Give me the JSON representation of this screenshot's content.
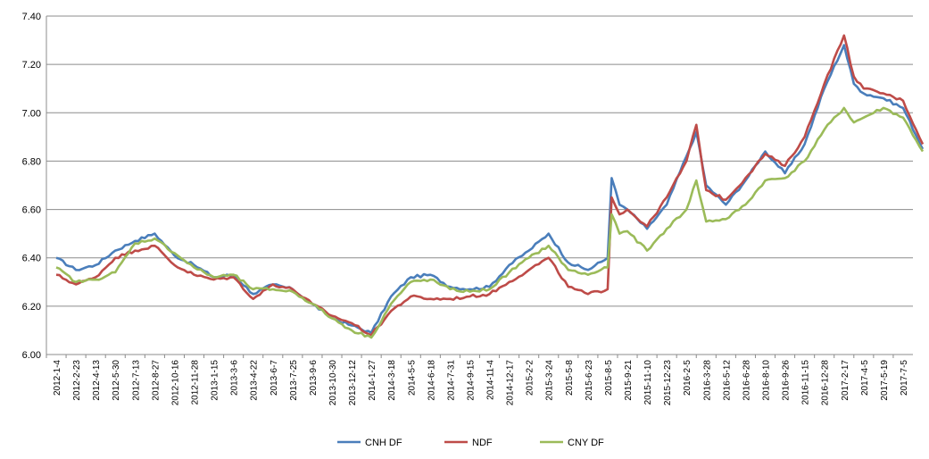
{
  "chart_data": {
    "type": "line",
    "title": "",
    "xlabel": "",
    "ylabel": "",
    "ylim": [
      6.0,
      7.4
    ],
    "yticks": [
      "6.00",
      "6.20",
      "6.40",
      "6.60",
      "6.80",
      "7.00",
      "7.20",
      "7.40"
    ],
    "grid": true,
    "legend_position": "bottom",
    "categories": [
      "2012-1-4",
      "2012-2-23",
      "2012-4-13",
      "2012-5-30",
      "2012-7-13",
      "2012-8-27",
      "2012-10-16",
      "2012-11-28",
      "2013-1-15",
      "2013-3-6",
      "2013-4-22",
      "2013-6-7",
      "2013-7-25",
      "2013-9-6",
      "2013-10-30",
      "2013-12-12",
      "2014-1-27",
      "2014-3-18",
      "2014-5-5",
      "2014-6-18",
      "2014-7-31",
      "2014-9-15",
      "2014-11-4",
      "2014-12-17",
      "2015-2-2",
      "2015-3-24",
      "2015-5-8",
      "2015-6-23",
      "2015-8-5",
      "2015-9-21",
      "2015-11-10",
      "2015-12-23",
      "2016-2-5",
      "2016-3-28",
      "2016-5-12",
      "2016-6-28",
      "2016-8-10",
      "2016-9-26",
      "2016-11-15",
      "2016-12-28",
      "2017-2-17",
      "2017-4-5",
      "2017-5-19",
      "2017-7-5"
    ],
    "series": [
      {
        "name": "CNH DF",
        "color": "#4a7ebb",
        "values": [
          [
            0,
            6.4
          ],
          [
            1,
            6.35
          ],
          [
            2,
            6.37
          ],
          [
            3,
            6.43
          ],
          [
            4,
            6.47
          ],
          [
            5,
            6.5
          ],
          [
            6,
            6.41
          ],
          [
            7,
            6.37
          ],
          [
            8,
            6.32
          ],
          [
            9,
            6.33
          ],
          [
            10,
            6.25
          ],
          [
            11,
            6.29
          ],
          [
            12,
            6.27
          ],
          [
            13,
            6.21
          ],
          [
            14,
            6.15
          ],
          [
            15,
            6.12
          ],
          [
            16,
            6.09
          ],
          [
            17,
            6.24
          ],
          [
            18,
            6.32
          ],
          [
            19,
            6.33
          ],
          [
            20,
            6.28
          ],
          [
            21,
            6.27
          ],
          [
            22,
            6.28
          ],
          [
            23,
            6.37
          ],
          [
            24,
            6.43
          ],
          [
            25,
            6.5
          ],
          [
            26,
            6.38
          ],
          [
            27,
            6.35
          ],
          [
            28,
            6.4
          ],
          [
            28.2,
            6.73
          ],
          [
            28.6,
            6.62
          ],
          [
            29,
            6.6
          ],
          [
            30,
            6.52
          ],
          [
            31,
            6.62
          ],
          [
            32,
            6.82
          ],
          [
            32.5,
            6.92
          ],
          [
            33,
            6.7
          ],
          [
            34,
            6.62
          ],
          [
            35,
            6.72
          ],
          [
            36,
            6.84
          ],
          [
            37,
            6.75
          ],
          [
            38,
            6.87
          ],
          [
            39,
            7.1
          ],
          [
            40,
            7.28
          ],
          [
            40.5,
            7.12
          ],
          [
            41,
            7.08
          ],
          [
            42,
            7.06
          ],
          [
            43,
            7.02
          ],
          [
            44,
            6.85
          ]
        ]
      },
      {
        "name": "NDF",
        "color": "#be4b48",
        "values": [
          [
            0,
            6.33
          ],
          [
            1,
            6.29
          ],
          [
            2,
            6.32
          ],
          [
            3,
            6.4
          ],
          [
            4,
            6.43
          ],
          [
            5,
            6.45
          ],
          [
            6,
            6.37
          ],
          [
            7,
            6.33
          ],
          [
            8,
            6.31
          ],
          [
            9,
            6.32
          ],
          [
            10,
            6.23
          ],
          [
            11,
            6.29
          ],
          [
            12,
            6.27
          ],
          [
            13,
            6.21
          ],
          [
            14,
            6.16
          ],
          [
            15,
            6.13
          ],
          [
            16,
            6.08
          ],
          [
            17,
            6.18
          ],
          [
            18,
            6.24
          ],
          [
            19,
            6.23
          ],
          [
            20,
            6.23
          ],
          [
            21,
            6.24
          ],
          [
            22,
            6.25
          ],
          [
            23,
            6.3
          ],
          [
            24,
            6.35
          ],
          [
            25,
            6.4
          ],
          [
            26,
            6.28
          ],
          [
            27,
            6.25
          ],
          [
            28,
            6.27
          ],
          [
            28.2,
            6.65
          ],
          [
            28.6,
            6.58
          ],
          [
            29,
            6.6
          ],
          [
            30,
            6.53
          ],
          [
            31,
            6.65
          ],
          [
            32,
            6.8
          ],
          [
            32.5,
            6.95
          ],
          [
            33,
            6.68
          ],
          [
            34,
            6.64
          ],
          [
            35,
            6.73
          ],
          [
            36,
            6.83
          ],
          [
            37,
            6.78
          ],
          [
            38,
            6.9
          ],
          [
            39,
            7.12
          ],
          [
            40,
            7.32
          ],
          [
            40.5,
            7.15
          ],
          [
            41,
            7.1
          ],
          [
            42,
            7.08
          ],
          [
            43,
            7.05
          ],
          [
            44,
            6.87
          ]
        ]
      },
      {
        "name": "CNY DF",
        "color": "#9bbb59",
        "values": [
          [
            0,
            6.36
          ],
          [
            1,
            6.3
          ],
          [
            2,
            6.31
          ],
          [
            3,
            6.34
          ],
          [
            4,
            6.46
          ],
          [
            5,
            6.48
          ],
          [
            6,
            6.42
          ],
          [
            7,
            6.36
          ],
          [
            8,
            6.32
          ],
          [
            9,
            6.33
          ],
          [
            10,
            6.27
          ],
          [
            11,
            6.27
          ],
          [
            12,
            6.26
          ],
          [
            13,
            6.21
          ],
          [
            14,
            6.15
          ],
          [
            15,
            6.1
          ],
          [
            16,
            6.07
          ],
          [
            17,
            6.21
          ],
          [
            18,
            6.3
          ],
          [
            19,
            6.31
          ],
          [
            20,
            6.27
          ],
          [
            21,
            6.26
          ],
          [
            22,
            6.27
          ],
          [
            23,
            6.34
          ],
          [
            24,
            6.4
          ],
          [
            25,
            6.45
          ],
          [
            26,
            6.35
          ],
          [
            27,
            6.33
          ],
          [
            28,
            6.36
          ],
          [
            28.2,
            6.58
          ],
          [
            28.6,
            6.5
          ],
          [
            29,
            6.51
          ],
          [
            30,
            6.43
          ],
          [
            31,
            6.52
          ],
          [
            32,
            6.6
          ],
          [
            32.5,
            6.72
          ],
          [
            33,
            6.55
          ],
          [
            34,
            6.56
          ],
          [
            35,
            6.62
          ],
          [
            36,
            6.72
          ],
          [
            37,
            6.73
          ],
          [
            38,
            6.8
          ],
          [
            39,
            6.93
          ],
          [
            40,
            7.02
          ],
          [
            40.5,
            6.96
          ],
          [
            41,
            6.98
          ],
          [
            42,
            7.02
          ],
          [
            43,
            6.98
          ],
          [
            44,
            6.84
          ]
        ]
      }
    ]
  }
}
